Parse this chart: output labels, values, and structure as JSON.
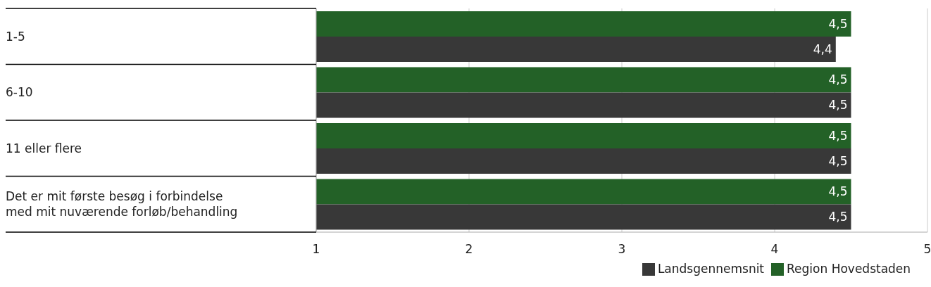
{
  "chart_data": {
    "type": "bar",
    "orientation": "horizontal",
    "categories": [
      "1-5",
      "6-10",
      "11 eller flere",
      "Det er mit første besøg i forbindelse med mit nuværende forløb/behandling"
    ],
    "series": [
      {
        "name": "Region Hovedstaden",
        "color": "#236127",
        "values": [
          4.5,
          4.5,
          4.5,
          4.5
        ],
        "value_labels": [
          "4,5",
          "4,5",
          "4,5",
          "4,5"
        ]
      },
      {
        "name": "Landsgennemsnit",
        "color": "#383838",
        "values": [
          4.4,
          4.5,
          4.5,
          4.5
        ],
        "value_labels": [
          "4,4",
          "4,5",
          "4,5",
          "4,5"
        ]
      }
    ],
    "xlim": [
      1,
      5
    ],
    "xticks": [
      1,
      2,
      3,
      4,
      5
    ],
    "grid": "x",
    "legend": "bottom"
  }
}
